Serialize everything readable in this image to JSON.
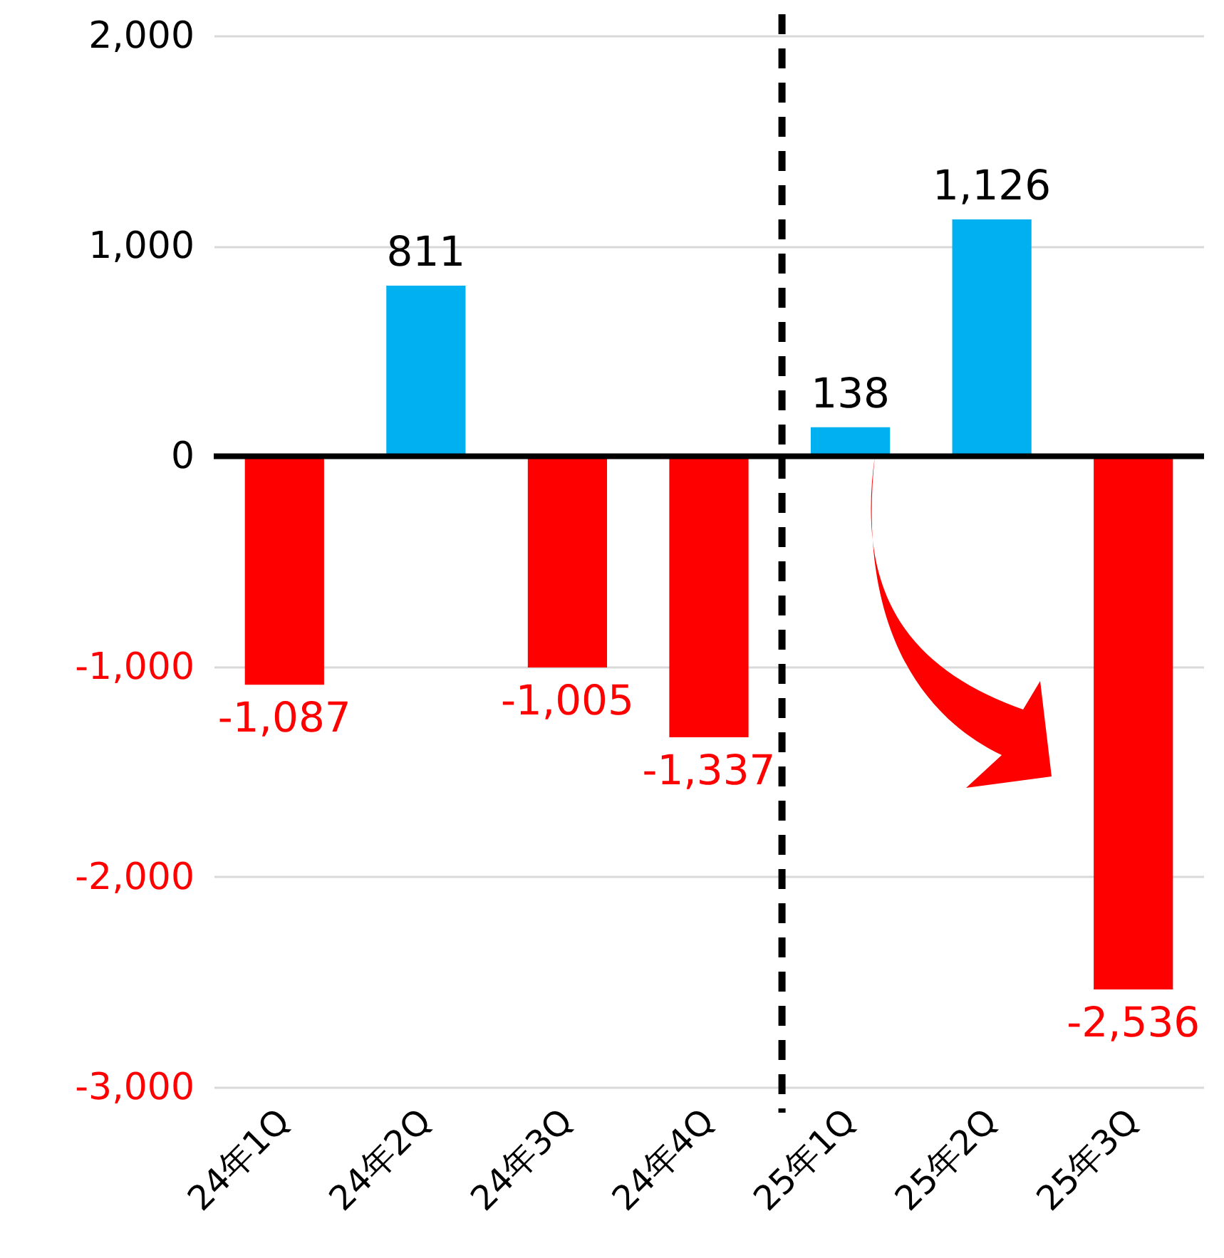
{
  "chart_data": {
    "type": "bar",
    "categories": [
      "24年1Q",
      "24年2Q",
      "24年3Q",
      "24年4Q",
      "25年1Q",
      "25年2Q",
      "25年3Q"
    ],
    "values": [
      -1087,
      811,
      -1005,
      -1337,
      138,
      1126,
      -2536
    ],
    "colors": [
      "#ff0000",
      "#00b0f0",
      "#ff0000",
      "#ff0000",
      "#00b0f0",
      "#00b0f0",
      "#ff0000"
    ],
    "ylim": [
      -3000,
      2000
    ],
    "yticks": [
      {
        "value": -3000,
        "label": "-3,000"
      },
      {
        "value": -2000,
        "label": "-2,000"
      },
      {
        "value": -1000,
        "label": "-1,000"
      },
      0,
      {
        "value": 1000,
        "label": "1,000"
      },
      {
        "value": 2000,
        "label": "2,000"
      }
    ],
    "grid": "y",
    "value_labels": [
      "-1,087",
      "811",
      "-1,005",
      "-1,337",
      "138",
      "1,126",
      "-2,536"
    ],
    "ref_lines": [
      {
        "axis": "x",
        "value": "25年1Q",
        "color": "#000000",
        "line_style": "dashed"
      }
    ]
  }
}
